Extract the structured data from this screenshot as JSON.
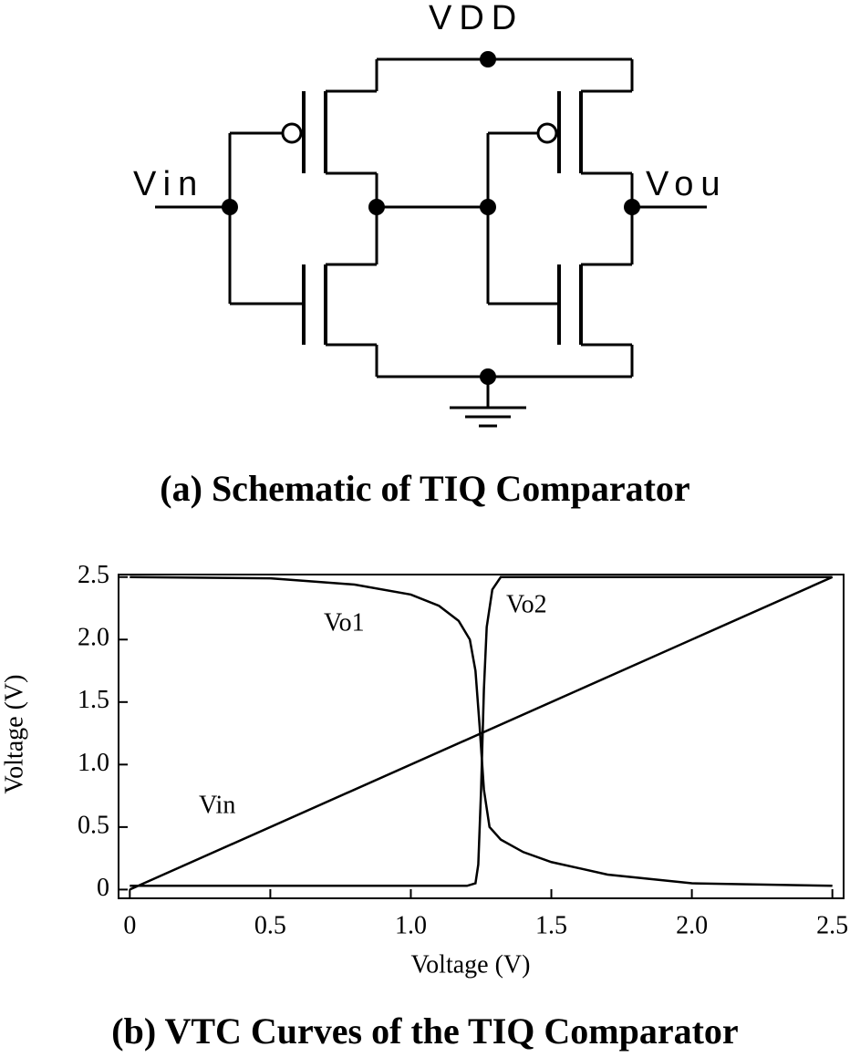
{
  "schematic": {
    "vdd": "VDD",
    "vin": "Vin",
    "vout": "Vou",
    "caption": "(a) Schematic of TIQ Comparator"
  },
  "chart_data": {
    "type": "line",
    "caption": "(b) VTC Curves of the TIQ Comparator",
    "x_label": "Voltage (V)",
    "y_label": "Voltage (V)",
    "xlim": [
      -0.04,
      2.54
    ],
    "ylim": [
      -0.07,
      2.52
    ],
    "xticks": [
      0,
      0.5,
      {
        "value": 1,
        "label": "1.0"
      },
      1.5,
      {
        "value": 2,
        "label": "2.0"
      },
      2.5
    ],
    "yticks": [
      0,
      0.5,
      {
        "value": 1,
        "label": "1.0"
      },
      1.5,
      {
        "value": 2,
        "label": "2.0"
      },
      2.5
    ],
    "grid": false,
    "series": [
      {
        "name": "Vo1",
        "color": "#000000",
        "x": [
          0,
          0.5,
          0.8,
          1.0,
          1.1,
          1.17,
          1.21,
          1.23,
          1.245,
          1.26,
          1.28,
          1.32,
          1.4,
          1.5,
          1.7,
          2.0,
          2.5
        ],
        "values": [
          2.5,
          2.49,
          2.44,
          2.36,
          2.27,
          2.15,
          2.0,
          1.75,
          1.3,
          0.8,
          0.5,
          0.4,
          0.3,
          0.22,
          0.12,
          0.05,
          0.03
        ]
      },
      {
        "name": "Vo2",
        "color": "#000000",
        "x": [
          0,
          1.2,
          1.23,
          1.24,
          1.25,
          1.26,
          1.27,
          1.29,
          1.32,
          2.5
        ],
        "values": [
          0.03,
          0.03,
          0.05,
          0.2,
          0.8,
          1.6,
          2.1,
          2.4,
          2.5,
          2.5
        ]
      },
      {
        "name": "Vin",
        "color": "#000000",
        "x": [
          0,
          2.5
        ],
        "values": [
          0,
          2.5
        ]
      }
    ]
  }
}
